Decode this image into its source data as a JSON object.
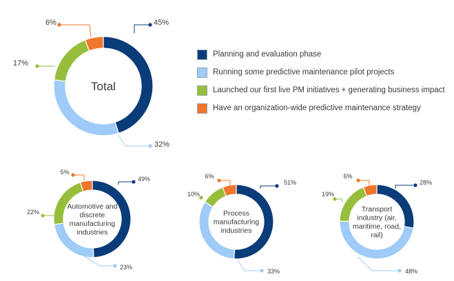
{
  "legend": [
    {
      "label": "Planning and evaluation phase",
      "color": "#0b3c7a"
    },
    {
      "label": "Running some predictive maintenance pilot projects",
      "color": "#9ecbf7"
    },
    {
      "label": "Launched our first live PM initiatives +  generating business impact",
      "color": "#97be3a"
    },
    {
      "label": "Have an organization-wide predictive maintenance strategy",
      "color": "#f0762b"
    }
  ],
  "chart_data": [
    {
      "type": "pie",
      "title": "Total",
      "categories": [
        "Planning and evaluation phase",
        "Running some predictive maintenance pilot projects",
        "Launched our first live PM initiatives +  generating business impact",
        "Have an organization-wide predictive maintenance strategy"
      ],
      "values": [
        45,
        32,
        17,
        6
      ],
      "labels": [
        "45%",
        "32%",
        "17%",
        "6%"
      ]
    },
    {
      "type": "pie",
      "title": "Automotive and discrete manufacturing industries",
      "categories": [
        "Planning and evaluation phase",
        "Running some predictive maintenance pilot projects",
        "Launched our first live PM initiatives +  generating business impact",
        "Have an organization-wide predictive maintenance strategy"
      ],
      "values": [
        49,
        23,
        22,
        5
      ],
      "labels": [
        "49%",
        "23%",
        "22%",
        "5%"
      ]
    },
    {
      "type": "pie",
      "title": "Process manufacturing industries",
      "categories": [
        "Planning and evaluation phase",
        "Running some predictive maintenance pilot projects",
        "Launched our first live PM initiatives +  generating business impact",
        "Have an organization-wide predictive maintenance strategy"
      ],
      "values": [
        51,
        33,
        10,
        6
      ],
      "labels": [
        "51%",
        "33%",
        "10%",
        "6%"
      ]
    },
    {
      "type": "pie",
      "title": "Transport industry (air, maritime, road, rail)",
      "categories": [
        "Planning and evaluation phase",
        "Running some predictive maintenance pilot projects",
        "Launched our first live PM initiatives +  generating business impact",
        "Have an organization-wide predictive maintenance strategy"
      ],
      "values": [
        28,
        48,
        19,
        6
      ],
      "labels": [
        "28%",
        "48%",
        "19%",
        "6%"
      ]
    }
  ]
}
